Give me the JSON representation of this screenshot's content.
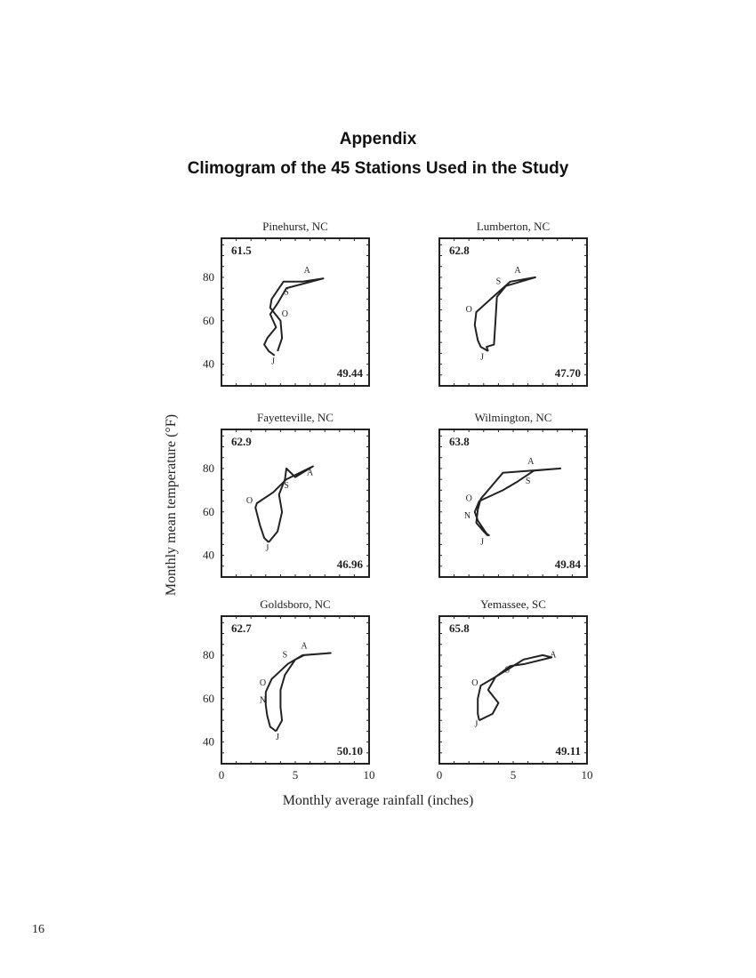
{
  "heading": "Appendix",
  "subtitle": "Climogram of the 45 Stations Used in the Study",
  "page_number": "16",
  "chart_data": {
    "type": "line",
    "ylabel": "Monthly mean temperature (°F)",
    "xlabel": "Monthly average rainfall (inches)",
    "xlim": [
      0,
      10
    ],
    "ylim": [
      30,
      98
    ],
    "xticks": [
      "0",
      "5",
      "10"
    ],
    "yticks": [
      "40",
      "60",
      "80"
    ],
    "panels": [
      {
        "name": "Pinehurst, NC",
        "mean_temperature": "61.5",
        "annual_rainfall": "49.44",
        "points": [
          [
            3.6,
            44
          ],
          [
            3.2,
            46
          ],
          [
            2.9,
            49
          ],
          [
            3.1,
            52
          ],
          [
            3.7,
            57
          ],
          [
            3.3,
            63
          ],
          [
            3.8,
            68
          ],
          [
            4.4,
            75
          ],
          [
            6.9,
            79.5
          ],
          [
            5.5,
            78
          ],
          [
            4.2,
            78
          ],
          [
            3.4,
            70
          ],
          [
            3.3,
            66
          ],
          [
            4.0,
            60
          ],
          [
            4.1,
            52
          ],
          [
            3.8,
            46
          ]
        ],
        "labels": [
          {
            "text": "A",
            "x": 5.8,
            "y": 82
          },
          {
            "text": "S",
            "x": 4.4,
            "y": 72
          },
          {
            "text": "O",
            "x": 4.3,
            "y": 62
          },
          {
            "text": "J",
            "x": 3.5,
            "y": 40
          }
        ]
      },
      {
        "name": "Lumberton, NC",
        "mean_temperature": "62.8",
        "annual_rainfall": "47.70",
        "points": [
          [
            3.3,
            46
          ],
          [
            2.8,
            48
          ],
          [
            2.6,
            51
          ],
          [
            2.4,
            58
          ],
          [
            2.5,
            64
          ],
          [
            3.8,
            72
          ],
          [
            4.8,
            78
          ],
          [
            6.5,
            80
          ],
          [
            5.5,
            78
          ],
          [
            4.5,
            76
          ],
          [
            3.9,
            71
          ],
          [
            3.8,
            60
          ],
          [
            3.7,
            49
          ],
          [
            3.2,
            48
          ],
          [
            3.3,
            46
          ]
        ],
        "labels": [
          {
            "text": "A",
            "x": 5.3,
            "y": 82
          },
          {
            "text": "S",
            "x": 4.0,
            "y": 77
          },
          {
            "text": "O",
            "x": 2.0,
            "y": 64
          },
          {
            "text": "J",
            "x": 2.9,
            "y": 42
          }
        ]
      },
      {
        "name": "Fayetteville, NC",
        "mean_temperature": "62.9",
        "annual_rainfall": "46.96",
        "points": [
          [
            3.2,
            46
          ],
          [
            2.9,
            48
          ],
          [
            2.6,
            54
          ],
          [
            2.3,
            62
          ],
          [
            2.4,
            64
          ],
          [
            3.5,
            69
          ],
          [
            4.4,
            75
          ],
          [
            6.2,
            81
          ],
          [
            5.0,
            76
          ],
          [
            4.4,
            80
          ],
          [
            4.3,
            75
          ],
          [
            3.9,
            68
          ],
          [
            4.1,
            60
          ],
          [
            3.8,
            51
          ],
          [
            3.2,
            46
          ]
        ],
        "labels": [
          {
            "text": "A",
            "x": 6.0,
            "y": 77
          },
          {
            "text": "S",
            "x": 4.4,
            "y": 71
          },
          {
            "text": "O",
            "x": 1.9,
            "y": 64
          },
          {
            "text": "J",
            "x": 3.1,
            "y": 42
          }
        ]
      },
      {
        "name": "Wilmington, NC",
        "mean_temperature": "63.8",
        "annual_rainfall": "49.84",
        "points": [
          [
            3.3,
            49
          ],
          [
            3.0,
            51
          ],
          [
            2.5,
            55
          ],
          [
            2.6,
            61
          ],
          [
            2.8,
            66
          ],
          [
            4.3,
            78
          ],
          [
            8.2,
            80
          ],
          [
            6.4,
            79
          ],
          [
            5.3,
            74
          ],
          [
            4.3,
            70
          ],
          [
            2.7,
            65
          ],
          [
            2.4,
            60
          ],
          [
            2.6,
            56
          ],
          [
            3.2,
            50
          ],
          [
            3.4,
            49
          ]
        ],
        "labels": [
          {
            "text": "A",
            "x": 6.2,
            "y": 82
          },
          {
            "text": "S",
            "x": 6.0,
            "y": 73
          },
          {
            "text": "O",
            "x": 2.0,
            "y": 65
          },
          {
            "text": "N",
            "x": 1.9,
            "y": 57
          },
          {
            "text": "J",
            "x": 2.9,
            "y": 45
          }
        ]
      },
      {
        "name": "Goldsboro, NC",
        "mean_temperature": "62.7",
        "annual_rainfall": "50.10",
        "points": [
          [
            3.7,
            45
          ],
          [
            3.3,
            47
          ],
          [
            3.1,
            52
          ],
          [
            3.0,
            57
          ],
          [
            3.0,
            63
          ],
          [
            3.4,
            69
          ],
          [
            4.5,
            76
          ],
          [
            5.5,
            80
          ],
          [
            7.4,
            81
          ],
          [
            5.6,
            80
          ],
          [
            5.0,
            78
          ],
          [
            4.3,
            71
          ],
          [
            4.0,
            64
          ],
          [
            4.0,
            56
          ],
          [
            4.1,
            50
          ],
          [
            3.7,
            45
          ]
        ],
        "labels": [
          {
            "text": "A",
            "x": 5.6,
            "y": 83
          },
          {
            "text": "S",
            "x": 4.3,
            "y": 79
          },
          {
            "text": "O",
            "x": 2.8,
            "y": 66
          },
          {
            "text": "N",
            "x": 2.8,
            "y": 58
          },
          {
            "text": "J",
            "x": 3.8,
            "y": 41
          }
        ]
      },
      {
        "name": "Yemassee, SC",
        "mean_temperature": "65.8",
        "annual_rainfall": "49.11",
        "points": [
          [
            2.7,
            50
          ],
          [
            2.6,
            53
          ],
          [
            2.6,
            60
          ],
          [
            2.8,
            66
          ],
          [
            3.8,
            70
          ],
          [
            5.0,
            75
          ],
          [
            5.7,
            78
          ],
          [
            7.0,
            80
          ],
          [
            7.6,
            79
          ],
          [
            5.8,
            76
          ],
          [
            4.8,
            75
          ],
          [
            3.8,
            70
          ],
          [
            3.3,
            64
          ],
          [
            4.0,
            58
          ],
          [
            3.6,
            53
          ],
          [
            2.7,
            50
          ]
        ],
        "labels": [
          {
            "text": "A",
            "x": 7.7,
            "y": 79
          },
          {
            "text": "S",
            "x": 4.6,
            "y": 72
          },
          {
            "text": "O",
            "x": 2.4,
            "y": 66
          },
          {
            "text": "J",
            "x": 2.5,
            "y": 47
          }
        ]
      }
    ]
  }
}
